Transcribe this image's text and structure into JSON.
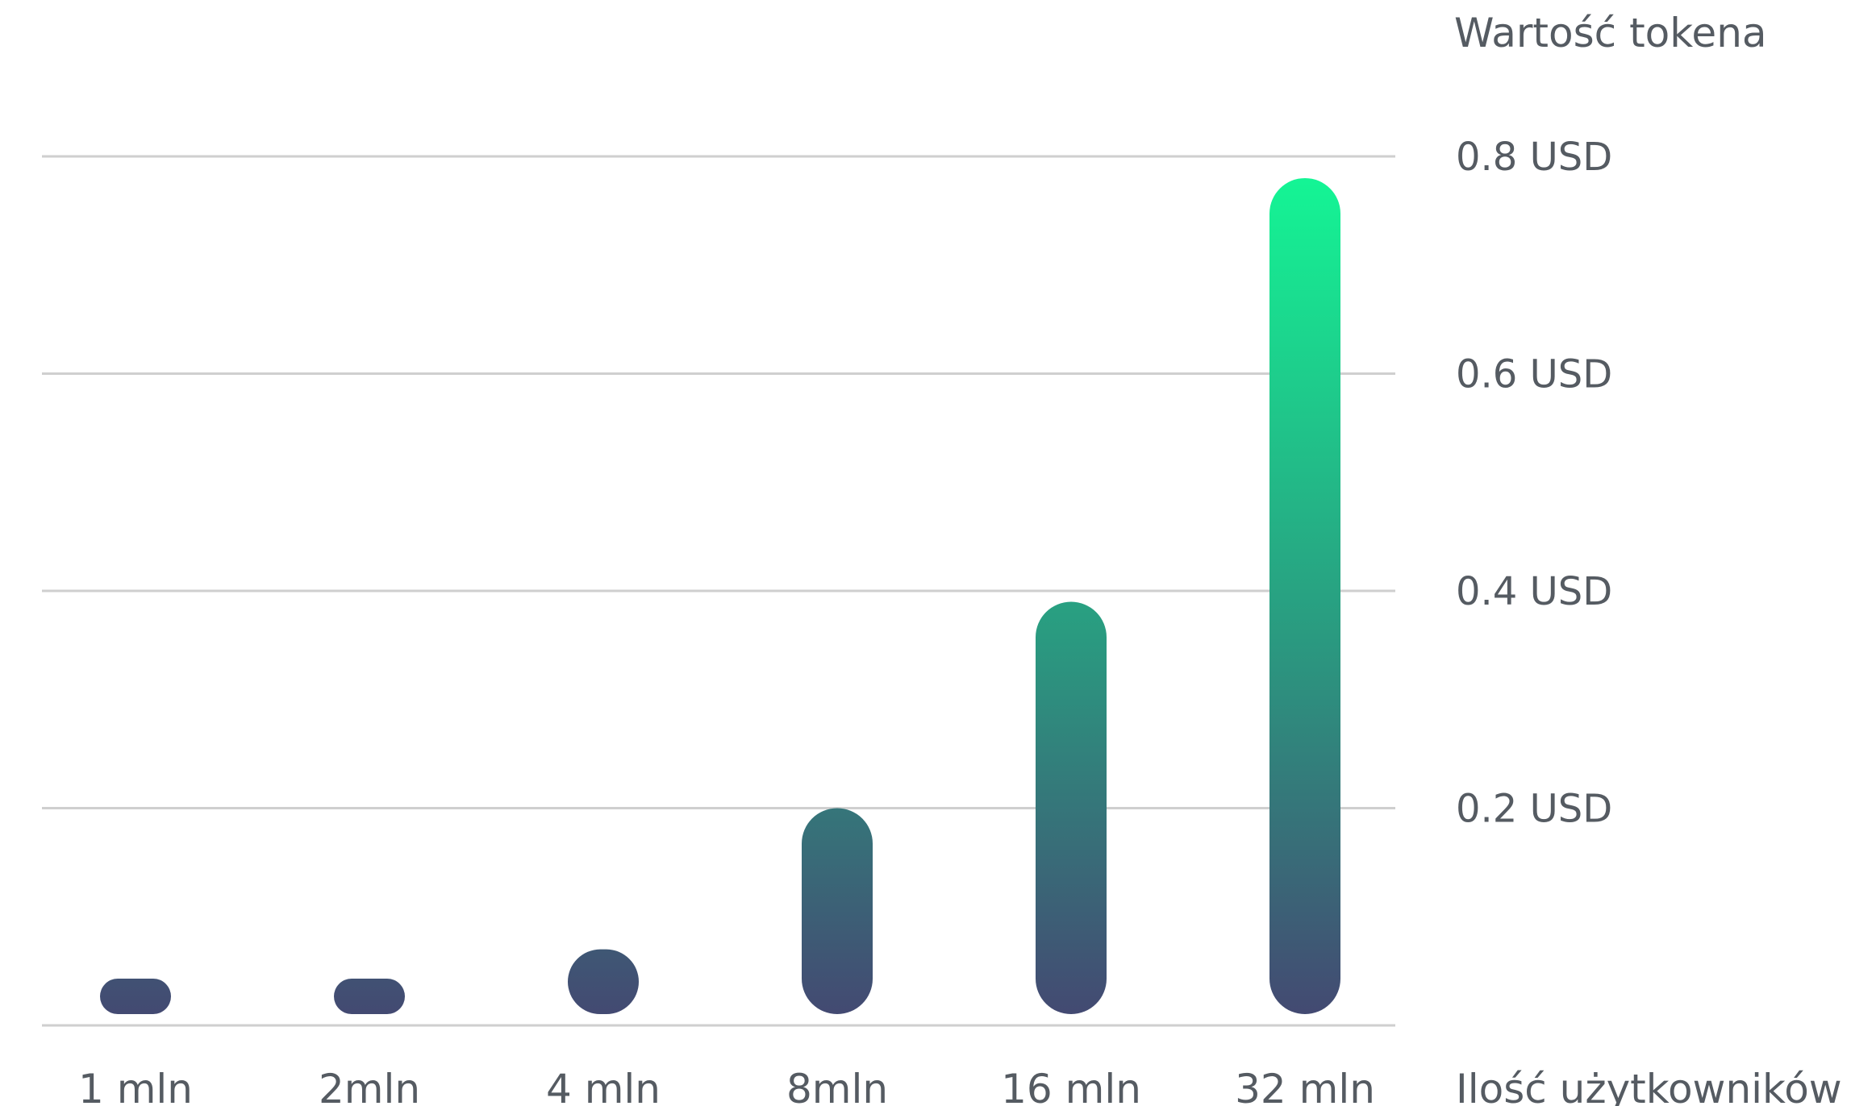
{
  "chart_data": {
    "type": "bar",
    "categories": [
      "1 mln",
      "2mln",
      "4 mln",
      "8mln",
      "16 mln",
      "32 mln"
    ],
    "values": [
      0.02,
      0.04,
      0.07,
      0.2,
      0.39,
      0.78
    ],
    "xlabel": "Ilość użytkowników",
    "ylabel": "Wartość tokena",
    "ylim": [
      0,
      0.8
    ],
    "yticks": [
      0.2,
      0.4,
      0.6,
      0.8
    ],
    "ytick_labels": [
      "0.2 USD",
      "0.4 USD",
      "0.6 USD",
      "0.8 USD"
    ],
    "y_axis_side": "right",
    "grid": true,
    "legend": "none",
    "colors": {
      "bar_top_high": "#14f595",
      "bar_mid": "#2a9a80",
      "bar_bottom": "#434a72",
      "grid": "#cfcfcf",
      "text": "#555b62"
    }
  }
}
